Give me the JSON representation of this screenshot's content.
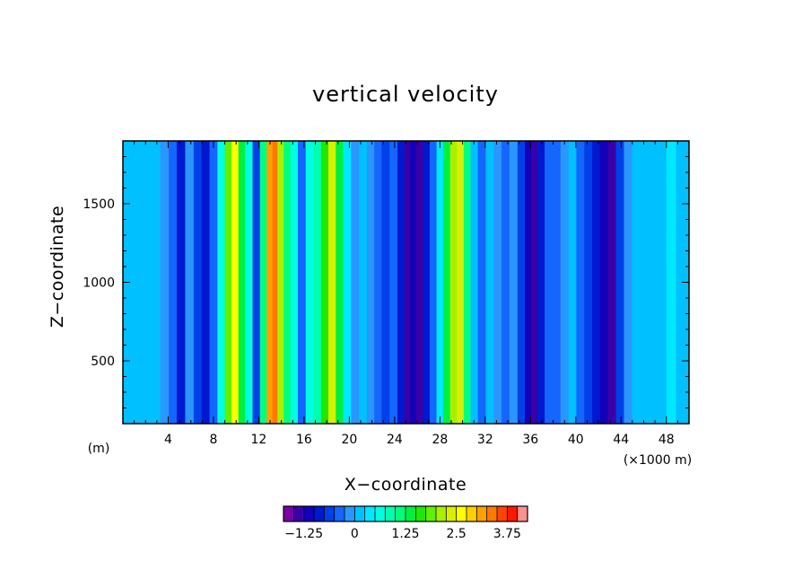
{
  "chart_data": {
    "type": "heatmap",
    "title": "vertical velocity",
    "xlabel": "X−coordinate",
    "ylabel": "Z−coordinate",
    "x_unit_note": "(m)",
    "x_scale_note": "(×1000 m)",
    "xlim": [
      0,
      50
    ],
    "ylim": [
      100,
      1900
    ],
    "x_ticks": [
      4,
      8,
      12,
      16,
      20,
      24,
      28,
      32,
      36,
      40,
      44,
      48
    ],
    "x_tick_labels": [
      "4",
      "8",
      "12",
      "16",
      "20",
      "24",
      "28",
      "32",
      "36",
      "40",
      "44",
      "48"
    ],
    "y_ticks": [
      500,
      1000,
      1500
    ],
    "y_tick_labels": [
      "500",
      "1000",
      "1500"
    ],
    "colorbar": {
      "min": -1.75,
      "step": 0.25,
      "levels": 24,
      "tick_values": [
        -1.25,
        0,
        1.25,
        2.5,
        3.75
      ],
      "tick_labels": [
        "−1.25",
        "0",
        "1.25",
        "2.5",
        "3.75"
      ],
      "colors": [
        "#7a00a8",
        "#3a00a8",
        "#1400b8",
        "#0018d0",
        "#0040e8",
        "#1466ff",
        "#2a96ff",
        "#00c0ff",
        "#00e8ff",
        "#00ffe0",
        "#00ffb0",
        "#00ff80",
        "#00f040",
        "#20e800",
        "#60f000",
        "#a8f000",
        "#d8f000",
        "#ffff00",
        "#ffd000",
        "#ffa000",
        "#ff7800",
        "#ff4400",
        "#ff1800",
        "#ff9090"
      ]
    },
    "field_columns": [
      {
        "x": 0.5,
        "w": 0.2
      },
      {
        "x": 1.3,
        "w": 0.0
      },
      {
        "x": 2.1,
        "w": 0.15
      },
      {
        "x": 2.9,
        "w": 0.1
      },
      {
        "x": 3.7,
        "w": -0.1
      },
      {
        "x": 4.4,
        "w": -0.3
      },
      {
        "x": 5.1,
        "w": -0.85
      },
      {
        "x": 5.9,
        "w": -0.2
      },
      {
        "x": 6.6,
        "w": -0.6
      },
      {
        "x": 7.3,
        "w": -1.0
      },
      {
        "x": 8.0,
        "w": -0.4
      },
      {
        "x": 8.7,
        "w": 0.7
      },
      {
        "x": 9.3,
        "w": 1.8
      },
      {
        "x": 9.9,
        "w": 2.6
      },
      {
        "x": 10.5,
        "w": 1.4
      },
      {
        "x": 11.1,
        "w": 0.6
      },
      {
        "x": 11.8,
        "w": -0.7
      },
      {
        "x": 12.4,
        "w": 1.2
      },
      {
        "x": 13.0,
        "w": 3.0
      },
      {
        "x": 13.4,
        "w": 3.4
      },
      {
        "x": 13.9,
        "w": 2.0
      },
      {
        "x": 14.5,
        "w": 1.0
      },
      {
        "x": 15.1,
        "w": 0.6
      },
      {
        "x": 15.8,
        "w": -0.3
      },
      {
        "x": 16.5,
        "w": 0.5
      },
      {
        "x": 17.2,
        "w": 0.9
      },
      {
        "x": 17.8,
        "w": 1.6
      },
      {
        "x": 18.5,
        "w": 2.4
      },
      {
        "x": 19.1,
        "w": 1.3
      },
      {
        "x": 19.8,
        "w": 0.3
      },
      {
        "x": 20.5,
        "w": -0.2
      },
      {
        "x": 21.2,
        "w": 0.2
      },
      {
        "x": 21.9,
        "w": -0.2
      },
      {
        "x": 22.5,
        "w": -0.4
      },
      {
        "x": 23.2,
        "w": -0.6
      },
      {
        "x": 23.9,
        "w": -0.4
      },
      {
        "x": 24.6,
        "w": -0.9
      },
      {
        "x": 25.1,
        "w": -1.3
      },
      {
        "x": 25.6,
        "w": -1.1
      },
      {
        "x": 26.2,
        "w": -1.4
      },
      {
        "x": 26.8,
        "w": -1.0
      },
      {
        "x": 27.4,
        "w": -0.5
      },
      {
        "x": 28.0,
        "w": 0.4
      },
      {
        "x": 28.6,
        "w": 1.3
      },
      {
        "x": 29.2,
        "w": 2.1
      },
      {
        "x": 29.8,
        "w": 2.4
      },
      {
        "x": 30.4,
        "w": 1.2
      },
      {
        "x": 31.0,
        "w": 0.2
      },
      {
        "x": 31.7,
        "w": -0.3
      },
      {
        "x": 32.4,
        "w": 0.0
      },
      {
        "x": 33.1,
        "w": -0.1
      },
      {
        "x": 33.8,
        "w": -0.4
      },
      {
        "x": 34.5,
        "w": -0.2
      },
      {
        "x": 35.2,
        "w": -0.6
      },
      {
        "x": 35.8,
        "w": -1.1
      },
      {
        "x": 36.3,
        "w": -1.4
      },
      {
        "x": 36.9,
        "w": -0.8
      },
      {
        "x": 37.6,
        "w": -0.3
      },
      {
        "x": 38.3,
        "w": -0.5
      },
      {
        "x": 39.0,
        "w": -0.2
      },
      {
        "x": 39.7,
        "w": 0.0
      },
      {
        "x": 40.4,
        "w": -0.4
      },
      {
        "x": 41.1,
        "w": -0.7
      },
      {
        "x": 41.8,
        "w": -0.9
      },
      {
        "x": 42.5,
        "w": -1.1
      },
      {
        "x": 43.2,
        "w": -1.3
      },
      {
        "x": 43.9,
        "w": -0.7
      },
      {
        "x": 44.6,
        "w": -0.2
      },
      {
        "x": 45.3,
        "w": 0.0
      },
      {
        "x": 46.0,
        "w": 0.2
      },
      {
        "x": 46.8,
        "w": 0.1
      },
      {
        "x": 47.6,
        "w": 0.2
      },
      {
        "x": 48.4,
        "w": 0.3
      },
      {
        "x": 49.3,
        "w": 0.2
      }
    ]
  }
}
